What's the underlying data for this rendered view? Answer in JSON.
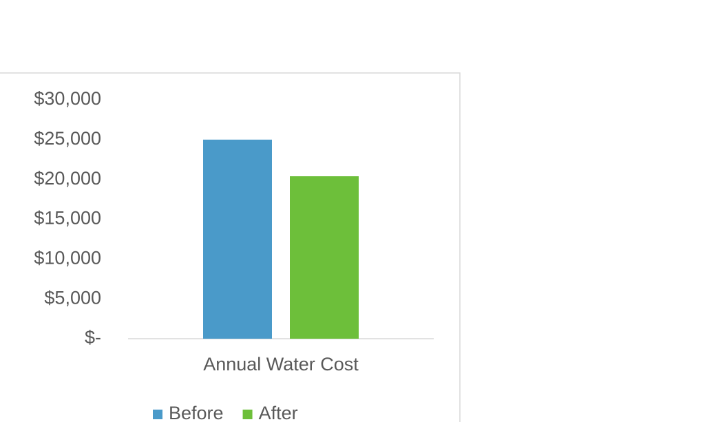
{
  "chart_data": {
    "type": "bar",
    "categories": [
      "Annual Water Cost"
    ],
    "series": [
      {
        "name": "Before",
        "color": "#4a9ac9",
        "values": [
          25000
        ]
      },
      {
        "name": "After",
        "color": "#6dbf3a",
        "values": [
          20400
        ]
      }
    ],
    "ylim": [
      0,
      30000
    ],
    "yticks": [
      {
        "value": 0,
        "label": "$-"
      },
      {
        "value": 5000,
        "label": "$5,000"
      },
      {
        "value": 10000,
        "label": "$10,000"
      },
      {
        "value": 15000,
        "label": "$15,000"
      },
      {
        "value": 20000,
        "label": "$20,000"
      },
      {
        "value": 25000,
        "label": "$25,000"
      },
      {
        "value": 30000,
        "label": "$30,000"
      }
    ],
    "grid": false,
    "legend": "bottom"
  }
}
